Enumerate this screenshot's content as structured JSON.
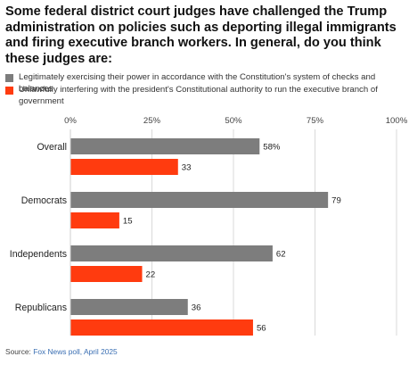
{
  "title": "Some federal district court judges have challenged the Trump administration on policies such as deporting illegal immigrants and firing executive branch workers. In general, do you think these judges are:",
  "source": {
    "label": "Source:",
    "text": "Fox News poll, April 2025"
  },
  "colors": {
    "legit": "#7d7d7d",
    "unlawful": "#ff3b0f",
    "grid": "#d9d9d9",
    "axis": "#cfcfcf"
  },
  "chart_data": {
    "type": "bar",
    "orientation": "horizontal",
    "categories": [
      "Overall",
      "Democrats",
      "Independents",
      "Republicans"
    ],
    "series": [
      {
        "name": "Legitimately exercising their power in accordance with the Constitution's system of checks and balances",
        "values": [
          58,
          79,
          62,
          36
        ],
        "value_labels": [
          "58%",
          "79",
          "62",
          "36"
        ]
      },
      {
        "name": "Unlawfully interfering with the president's Constitutional authority to run the executive branch of government",
        "values": [
          33,
          15,
          22,
          56
        ],
        "value_labels": [
          "33",
          "15",
          "22",
          "56"
        ]
      }
    ],
    "xticks": [
      0,
      25,
      50,
      75,
      100
    ],
    "xtick_labels": [
      "0%",
      "25%",
      "50%",
      "75%",
      "100%"
    ],
    "xlim": [
      0,
      100
    ],
    "grid": true,
    "legend": "top"
  }
}
